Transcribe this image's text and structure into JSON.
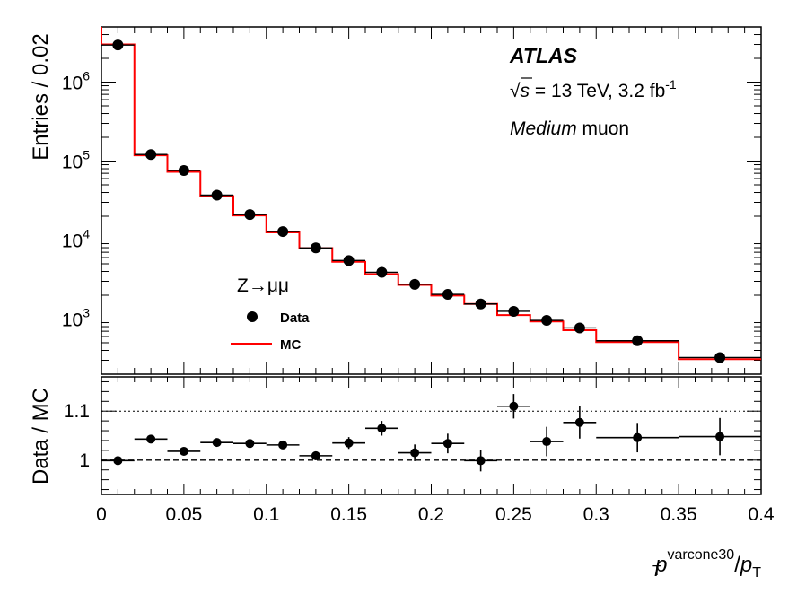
{
  "chart_data": [
    {
      "type": "line",
      "panel": "main",
      "ylabel": "Entries / 0.02",
      "yscale": "log",
      "ylim": [
        200,
        5000000
      ],
      "xlim": [
        0,
        0.4
      ],
      "y_ticks": [
        {
          "value": 1000,
          "base": "10",
          "exp": "3"
        },
        {
          "value": 10000,
          "base": "10",
          "exp": "4"
        },
        {
          "value": 100000,
          "base": "10",
          "exp": "5"
        },
        {
          "value": 1000000,
          "base": "10",
          "exp": "6"
        }
      ],
      "annotations": {
        "experiment": "ATLAS",
        "energy_sqrt": "√",
        "energy_s": "s",
        "energy_rest": " = 13 TeV, 3.2 fb",
        "energy_exp": "-1",
        "selection_italic": "Medium",
        "selection_rest": " muon"
      },
      "legend": {
        "title": "Z→μμ",
        "placement": "bottom-left",
        "entries": [
          "Data",
          "MC"
        ]
      },
      "mc_color": "#ff0000",
      "data_color": "#000000",
      "bin_edges": [
        0,
        0.02,
        0.04,
        0.06,
        0.08,
        0.1,
        0.12,
        0.14,
        0.16,
        0.18,
        0.2,
        0.22,
        0.24,
        0.26,
        0.28,
        0.3,
        0.35,
        0.4
      ],
      "series": [
        {
          "name": "MC",
          "kind": "histogram",
          "values": [
            3000000,
            118000,
            73000,
            36000,
            20500,
            12500,
            7900,
            5300,
            3700,
            2700,
            1980,
            1550,
            1120,
            930,
            720,
            510,
            310
          ]
        },
        {
          "name": "Data",
          "kind": "points",
          "x": [
            0.01,
            0.03,
            0.05,
            0.07,
            0.09,
            0.11,
            0.13,
            0.15,
            0.17,
            0.19,
            0.21,
            0.23,
            0.25,
            0.27,
            0.29,
            0.325,
            0.375
          ],
          "values": [
            2950000,
            121000,
            76000,
            37000,
            21000,
            12800,
            7950,
            5500,
            3900,
            2750,
            2050,
            1550,
            1250,
            960,
            770,
            530,
            325
          ]
        }
      ]
    },
    {
      "type": "scatter",
      "panel": "ratio",
      "ylabel": "Data / MC",
      "xlabel_base": "p",
      "xlabel_super": "varcone30",
      "xlabel_sub": "T",
      "xlabel_slash": "/",
      "xlabel_base2": "p",
      "xlabel_sub2": "T",
      "xlim": [
        0,
        0.4
      ],
      "ylim": [
        0.93,
        1.17
      ],
      "x_ticks": [
        "0",
        "0.05",
        "0.1",
        "0.15",
        "0.2",
        "0.25",
        "0.3",
        "0.35",
        "0.4"
      ],
      "y_ticks": [
        {
          "value": 1.0,
          "label": "1"
        },
        {
          "value": 1.1,
          "label": "1.1"
        }
      ],
      "reference_lines": [
        {
          "value": 1.0,
          "style": "dashed"
        },
        {
          "value": 1.1,
          "style": "dotted"
        }
      ],
      "points": [
        {
          "x": 0.01,
          "xerr": 0.01,
          "y": 0.999,
          "yerr": 0.002
        },
        {
          "x": 0.03,
          "xerr": 0.01,
          "y": 1.043,
          "yerr": 0.004
        },
        {
          "x": 0.05,
          "xerr": 0.01,
          "y": 1.018,
          "yerr": 0.005
        },
        {
          "x": 0.07,
          "xerr": 0.01,
          "y": 1.036,
          "yerr": 0.006
        },
        {
          "x": 0.09,
          "xerr": 0.01,
          "y": 1.034,
          "yerr": 0.007
        },
        {
          "x": 0.11,
          "xerr": 0.01,
          "y": 1.031,
          "yerr": 0.008
        },
        {
          "x": 0.13,
          "xerr": 0.01,
          "y": 1.009,
          "yerr": 0.009
        },
        {
          "x": 0.15,
          "xerr": 0.01,
          "y": 1.035,
          "yerr": 0.012
        },
        {
          "x": 0.17,
          "xerr": 0.01,
          "y": 1.065,
          "yerr": 0.015
        },
        {
          "x": 0.19,
          "xerr": 0.01,
          "y": 1.015,
          "yerr": 0.017
        },
        {
          "x": 0.21,
          "xerr": 0.01,
          "y": 1.034,
          "yerr": 0.02
        },
        {
          "x": 0.23,
          "xerr": 0.01,
          "y": 0.999,
          "yerr": 0.022
        },
        {
          "x": 0.25,
          "xerr": 0.01,
          "y": 1.11,
          "yerr": 0.025
        },
        {
          "x": 0.27,
          "xerr": 0.01,
          "y": 1.038,
          "yerr": 0.03
        },
        {
          "x": 0.29,
          "xerr": 0.01,
          "y": 1.077,
          "yerr": 0.033
        },
        {
          "x": 0.325,
          "xerr": 0.025,
          "y": 1.046,
          "yerr": 0.03
        },
        {
          "x": 0.375,
          "xerr": 0.025,
          "y": 1.048,
          "yerr": 0.038
        }
      ]
    }
  ]
}
